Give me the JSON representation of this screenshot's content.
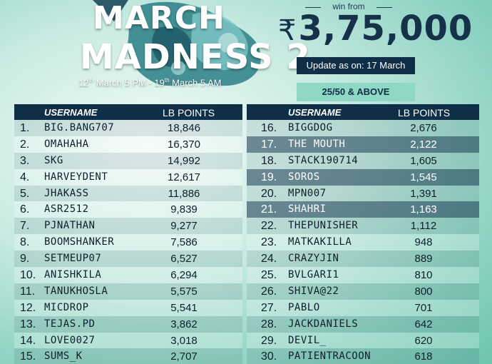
{
  "header": {
    "title_line1": "MARCH",
    "title_line2": "MADNESS 2",
    "dates_part1": "12",
    "dates_sup1": "th",
    "dates_part2": " March 5 PM - 19",
    "dates_sup2": "th",
    "dates_part3": " March 5 AM",
    "win_from": "win from",
    "prize_symbol": "₹",
    "prize_amount": "3,75,000",
    "update_text": "Update as on: 17 March",
    "badge_text": "25/50 & ABOVE"
  },
  "colors": {
    "navy": "#0f2f48",
    "mint": "#8fd8c4"
  },
  "board_left": {
    "col_username": "USERNAME",
    "col_points": "LB POINTS",
    "rows": [
      {
        "rank": "1.",
        "username": "BIG.BANG707",
        "points": "18,846"
      },
      {
        "rank": "2.",
        "username": "OMAHAHA",
        "points": "16,370"
      },
      {
        "rank": "3.",
        "username": "SKG",
        "points": "14,992"
      },
      {
        "rank": "4.",
        "username": "HARVEYDENT",
        "points": "12,617"
      },
      {
        "rank": "5.",
        "username": "JHAKASS",
        "points": "11,886"
      },
      {
        "rank": "6.",
        "username": "ASR2512",
        "points": "9,839"
      },
      {
        "rank": "7.",
        "username": "PJNATHAN",
        "points": "9,277"
      },
      {
        "rank": "8.",
        "username": "BOOMSHANKER",
        "points": "7,586"
      },
      {
        "rank": "9.",
        "username": "SETMEUP07",
        "points": "6,527"
      },
      {
        "rank": "10.",
        "username": "ANISHKILA",
        "points": "6,294"
      },
      {
        "rank": "11.",
        "username": "TANUKHOSLA",
        "points": "5,575"
      },
      {
        "rank": "12.",
        "username": "MICDROP",
        "points": "5,541"
      },
      {
        "rank": "13.",
        "username": "TEJAS.PD",
        "points": "3,862"
      },
      {
        "rank": "14.",
        "username": "LOVE0027",
        "points": "3,018"
      },
      {
        "rank": "15.",
        "username": "SUMS_K",
        "points": "2,707"
      }
    ]
  },
  "board_right": {
    "col_username": "USERNAME",
    "col_points": "LB POINTS",
    "rows": [
      {
        "rank": "16.",
        "username": "BIGGDOG",
        "points": "2,676"
      },
      {
        "rank": "17.",
        "username": "THE MOUTH",
        "points": "2,122"
      },
      {
        "rank": "18.",
        "username": "STACK190714",
        "points": "1,605"
      },
      {
        "rank": "19.",
        "username": "SOROS",
        "points": "1,545"
      },
      {
        "rank": "20.",
        "username": "MPN007",
        "points": "1,391"
      },
      {
        "rank": "21.",
        "username": "SHAHRI",
        "points": "1,163"
      },
      {
        "rank": "22.",
        "username": "THEPUNISHER",
        "points": "1,112"
      },
      {
        "rank": "23.",
        "username": "MATKAKILLA",
        "points": "948"
      },
      {
        "rank": "24.",
        "username": "CRAZYJIN",
        "points": "889"
      },
      {
        "rank": "25.",
        "username": "BVLGARI1",
        "points": "810"
      },
      {
        "rank": "26.",
        "username": "SHIVA@22",
        "points": "800"
      },
      {
        "rank": "27.",
        "username": "PABLO",
        "points": "701"
      },
      {
        "rank": "28.",
        "username": "JACKDANIELS",
        "points": "642"
      },
      {
        "rank": "29.",
        "username": "DEVIL_",
        "points": "620"
      },
      {
        "rank": "30.",
        "username": "PATIENTRACOON",
        "points": "618"
      }
    ]
  }
}
